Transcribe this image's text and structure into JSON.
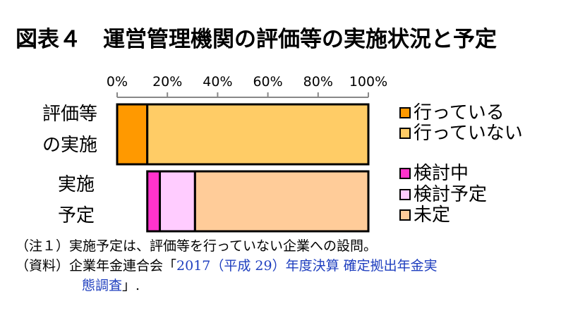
{
  "chart_data": {
    "type": "bar",
    "orientation": "horizontal",
    "stacked": true,
    "title": "図表４　運営管理機関の評価等の実施状況と予定",
    "xlim": [
      0,
      100
    ],
    "x_ticks": [
      "0%",
      "20%",
      "40%",
      "60%",
      "80%",
      "100%"
    ],
    "tick_values": [
      0,
      20,
      40,
      60,
      80,
      100
    ],
    "categories": [
      {
        "line1": "評価等",
        "line2": "の実施"
      },
      {
        "line1": "実施",
        "line2": "予定"
      }
    ],
    "bars": [
      {
        "category_index": 0,
        "segments": [
          {
            "name": "行っている",
            "value": 12,
            "color": "#ff9900"
          },
          {
            "name": "行っていない",
            "value": 88,
            "color": "#ffcc66"
          }
        ]
      },
      {
        "category_index": 1,
        "start": 12,
        "segments": [
          {
            "name": "検討中",
            "value": 5,
            "color": "#ff33cc"
          },
          {
            "name": "検討予定",
            "value": 14,
            "color": "#ffccff"
          },
          {
            "name": "未定",
            "value": 69,
            "color": "#ffcc99"
          }
        ]
      }
    ],
    "legend": {
      "placement": "right",
      "groups": [
        [
          {
            "name": "行っている",
            "color": "#ff9900"
          },
          {
            "name": "行っていない",
            "color": "#ffcc66"
          }
        ],
        [
          {
            "name": "検討中",
            "color": "#ff33cc"
          },
          {
            "name": "検討予定",
            "color": "#ffccff"
          },
          {
            "name": "未定",
            "color": "#ffcc99"
          }
        ]
      ]
    }
  },
  "notes": {
    "note1": "（注１）実施予定は、評価等を行っていない企業への設問。",
    "source_prefix": "（資料）企業年金連合会「",
    "source_title_a": "2017（平成 29）年度決算  確定拠出年金実",
    "source_title_b": "態調査",
    "source_suffix": "」."
  }
}
